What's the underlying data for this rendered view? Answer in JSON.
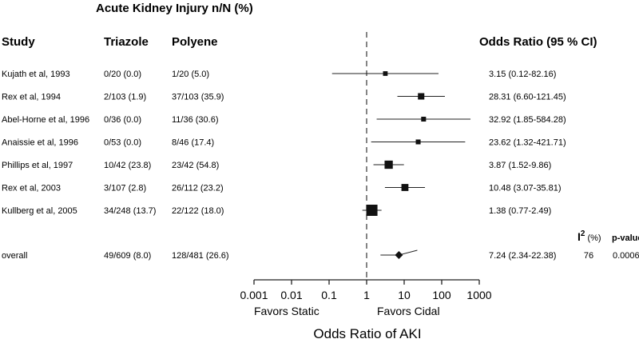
{
  "chart_data": {
    "type": "forest",
    "title": "Acute Kidney Injury n/N (%)",
    "columns": {
      "study": "Study",
      "group1": "Triazole",
      "group2": "Polyene",
      "estimate": "Odds Ratio (95 % CI)"
    },
    "studies": [
      {
        "name": "Kujath et al, 1993",
        "group1": "0/20 (0.0)",
        "group2": "1/20 (5.0)",
        "or_text": "3.15 (0.12-82.16)",
        "or": 3.15,
        "lower": 0.12,
        "upper": 82.16
      },
      {
        "name": "Rex et al, 1994",
        "group1": "2/103 (1.9)",
        "group2": "37/103 (35.9)",
        "or_text": "28.31 (6.60-121.45)",
        "or": 28.31,
        "lower": 6.6,
        "upper": 121.45
      },
      {
        "name": "Abel-Horne et al, 1996",
        "group1": "0/36 (0.0)",
        "group2": "11/36 (30.6)",
        "or_text": "32.92 (1.85-584.28)",
        "or": 32.92,
        "lower": 1.85,
        "upper": 584.28
      },
      {
        "name": "Anaissie et al, 1996",
        "group1": "0/53 (0.0)",
        "group2": "8/46 (17.4)",
        "or_text": "23.62 (1.32-421.71)",
        "or": 23.62,
        "lower": 1.32,
        "upper": 421.71
      },
      {
        "name": "Phillips et al, 1997",
        "group1": "10/42 (23.8)",
        "group2": "23/42 (54.8)",
        "or_text": "3.87 (1.52-9.86)",
        "or": 3.87,
        "lower": 1.52,
        "upper": 9.86
      },
      {
        "name": "Rex et al, 2003",
        "group1": "3/107 (2.8)",
        "group2": "26/112 (23.2)",
        "or_text": "10.48 (3.07-35.81)",
        "or": 10.48,
        "lower": 3.07,
        "upper": 35.81
      },
      {
        "name": "Kullberg et al, 2005",
        "group1": "34/248 (13.7)",
        "group2": "22/122 (18.0)",
        "or_text": "1.38 (0.77-2.49)",
        "or": 1.38,
        "lower": 0.77,
        "upper": 2.49
      }
    ],
    "overall": {
      "name": "overall",
      "group1": "49/609 (8.0)",
      "group2": "128/481 (26.6)",
      "or_text": "7.24 (2.34-22.38)",
      "or": 7.24,
      "lower": 2.34,
      "upper": 22.38,
      "i2": "76",
      "p_value": "0.0006"
    },
    "heterogeneity_header": {
      "i2_symbol": "I",
      "i2_superscript": "2",
      "i2_unit": "(%)",
      "p_label": "p-value"
    },
    "x_axis": {
      "scale": "log",
      "range": [
        0.001,
        1000
      ],
      "ticks": [
        0.001,
        0.01,
        0.1,
        1,
        10,
        100,
        1000
      ],
      "tick_labels": [
        "0.001",
        "0.01",
        "0.1",
        "1",
        "10",
        "100",
        "1000"
      ],
      "reference_line": 1,
      "left_label": "Favors Static",
      "right_label": "Favors Cidal",
      "title": "Odds Ratio of AKI"
    }
  }
}
